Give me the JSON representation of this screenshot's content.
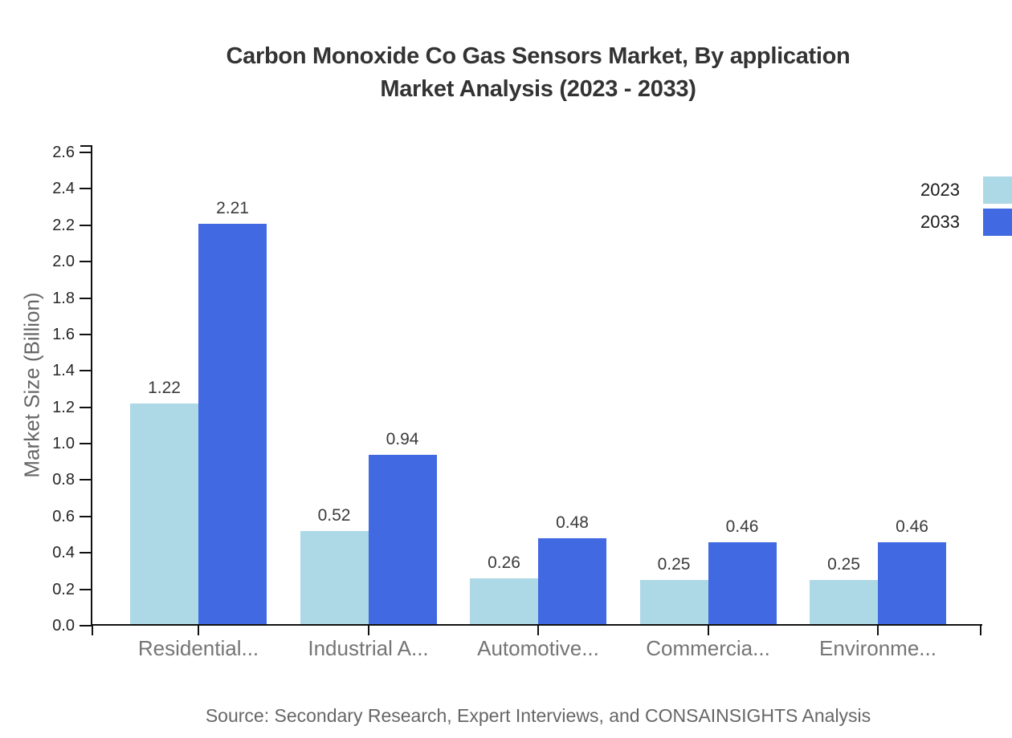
{
  "title": {
    "line1": "Carbon Monoxide Co Gas Sensors Market, By application",
    "line2": "Market Analysis (2023 - 2033)"
  },
  "source": "Source: Secondary Research, Expert Interviews, and CONSAINSIGHTS Analysis",
  "chart_data": {
    "type": "bar",
    "title": "Carbon Monoxide Co Gas Sensors Market, By application Market Analysis (2023 - 2033)",
    "categories": [
      "Residential...",
      "Industrial A...",
      "Automotive...",
      "Commercia...",
      "Environme..."
    ],
    "series": [
      {
        "name": "2023",
        "color": "#ADD8E6",
        "values": [
          1.22,
          0.52,
          0.26,
          0.25,
          0.25
        ]
      },
      {
        "name": "2033",
        "color": "#4169E1",
        "values": [
          2.21,
          0.94,
          0.48,
          0.46,
          0.46
        ]
      }
    ],
    "xlabel": "",
    "ylabel": "Market Size (Billion)",
    "ylim": [
      0,
      2.6
    ],
    "yticks": [
      0,
      0.2,
      0.4,
      0.6,
      0.8,
      1.0,
      1.2,
      1.4,
      1.6,
      1.8,
      2.0,
      2.2,
      2.4,
      2.6
    ],
    "grid": false,
    "value_labels": true,
    "legend_position": "top-right",
    "background": "#FFFFFF",
    "axis_color": "#111111"
  }
}
